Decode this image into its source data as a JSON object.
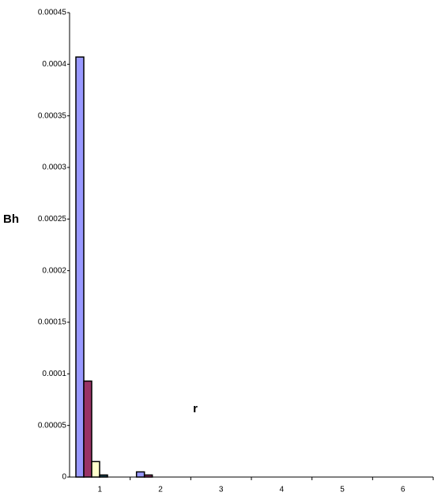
{
  "chart_data": {
    "type": "bar",
    "y_label": "Bh",
    "x_label": "r",
    "categories": [
      "1",
      "2",
      "3",
      "4",
      "5",
      "6"
    ],
    "series": [
      {
        "color": "#9999ff",
        "values": [
          0.000407,
          5e-06,
          0,
          0,
          0,
          0
        ]
      },
      {
        "color": "#993366",
        "values": [
          9.3e-05,
          2e-06,
          0,
          0,
          0,
          0
        ]
      },
      {
        "color": "#ffffcc",
        "values": [
          1.5e-05,
          0,
          0,
          0,
          0,
          0
        ]
      },
      {
        "color": "#1f4e5f",
        "values": [
          2e-06,
          0,
          0,
          0,
          0,
          0
        ]
      }
    ],
    "ylim": [
      0,
      0.00045
    ],
    "yticks": [
      0,
      5e-05,
      0.0001,
      0.00015,
      0.0002,
      0.00025,
      0.0003,
      0.00035,
      0.0004,
      0.00045
    ],
    "grid": false
  }
}
